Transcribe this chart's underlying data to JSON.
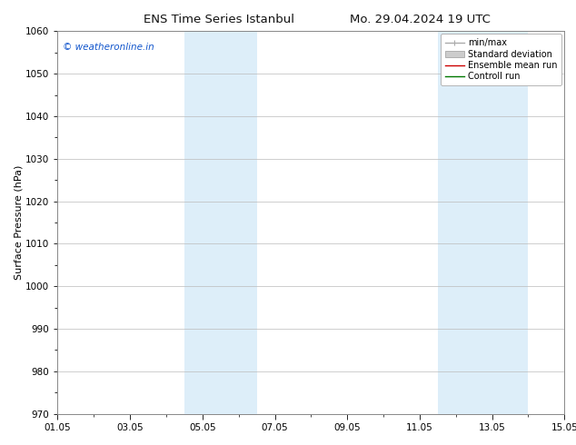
{
  "title_left": "ENS Time Series Istanbul",
  "title_right": "Mo. 29.04.2024 19 UTC",
  "ylabel": "Surface Pressure (hPa)",
  "ylim": [
    970,
    1060
  ],
  "yticks": [
    970,
    980,
    990,
    1000,
    1010,
    1020,
    1030,
    1040,
    1050,
    1060
  ],
  "xtick_labels": [
    "01.05",
    "03.05",
    "05.05",
    "07.05",
    "09.05",
    "11.05",
    "13.05",
    "15.05"
  ],
  "xtick_positions": [
    0,
    2,
    4,
    6,
    8,
    10,
    12,
    14
  ],
  "xlim": [
    0,
    14
  ],
  "shaded_bands": [
    {
      "x_start": 3.5,
      "x_end": 5.5,
      "color": "#ddeef9"
    },
    {
      "x_start": 10.5,
      "x_end": 13.0,
      "color": "#ddeef9"
    }
  ],
  "watermark": "© weatheronline.in",
  "watermark_color": "#1155cc",
  "legend_items": [
    {
      "label": "min/max",
      "type": "line",
      "color": "#aaaaaa",
      "lw": 1.0
    },
    {
      "label": "Standard deviation",
      "type": "patch",
      "color": "#cccccc"
    },
    {
      "label": "Ensemble mean run",
      "type": "line",
      "color": "#cc0000",
      "lw": 1.0
    },
    {
      "label": "Controll run",
      "type": "line",
      "color": "#007700",
      "lw": 1.0
    }
  ],
  "bg_color": "#ffffff",
  "plot_bg_color": "#ffffff",
  "grid_color": "#bbbbbb",
  "title_fontsize": 9.5,
  "tick_fontsize": 7.5,
  "ylabel_fontsize": 8,
  "watermark_fontsize": 7.5,
  "legend_fontsize": 7.0
}
